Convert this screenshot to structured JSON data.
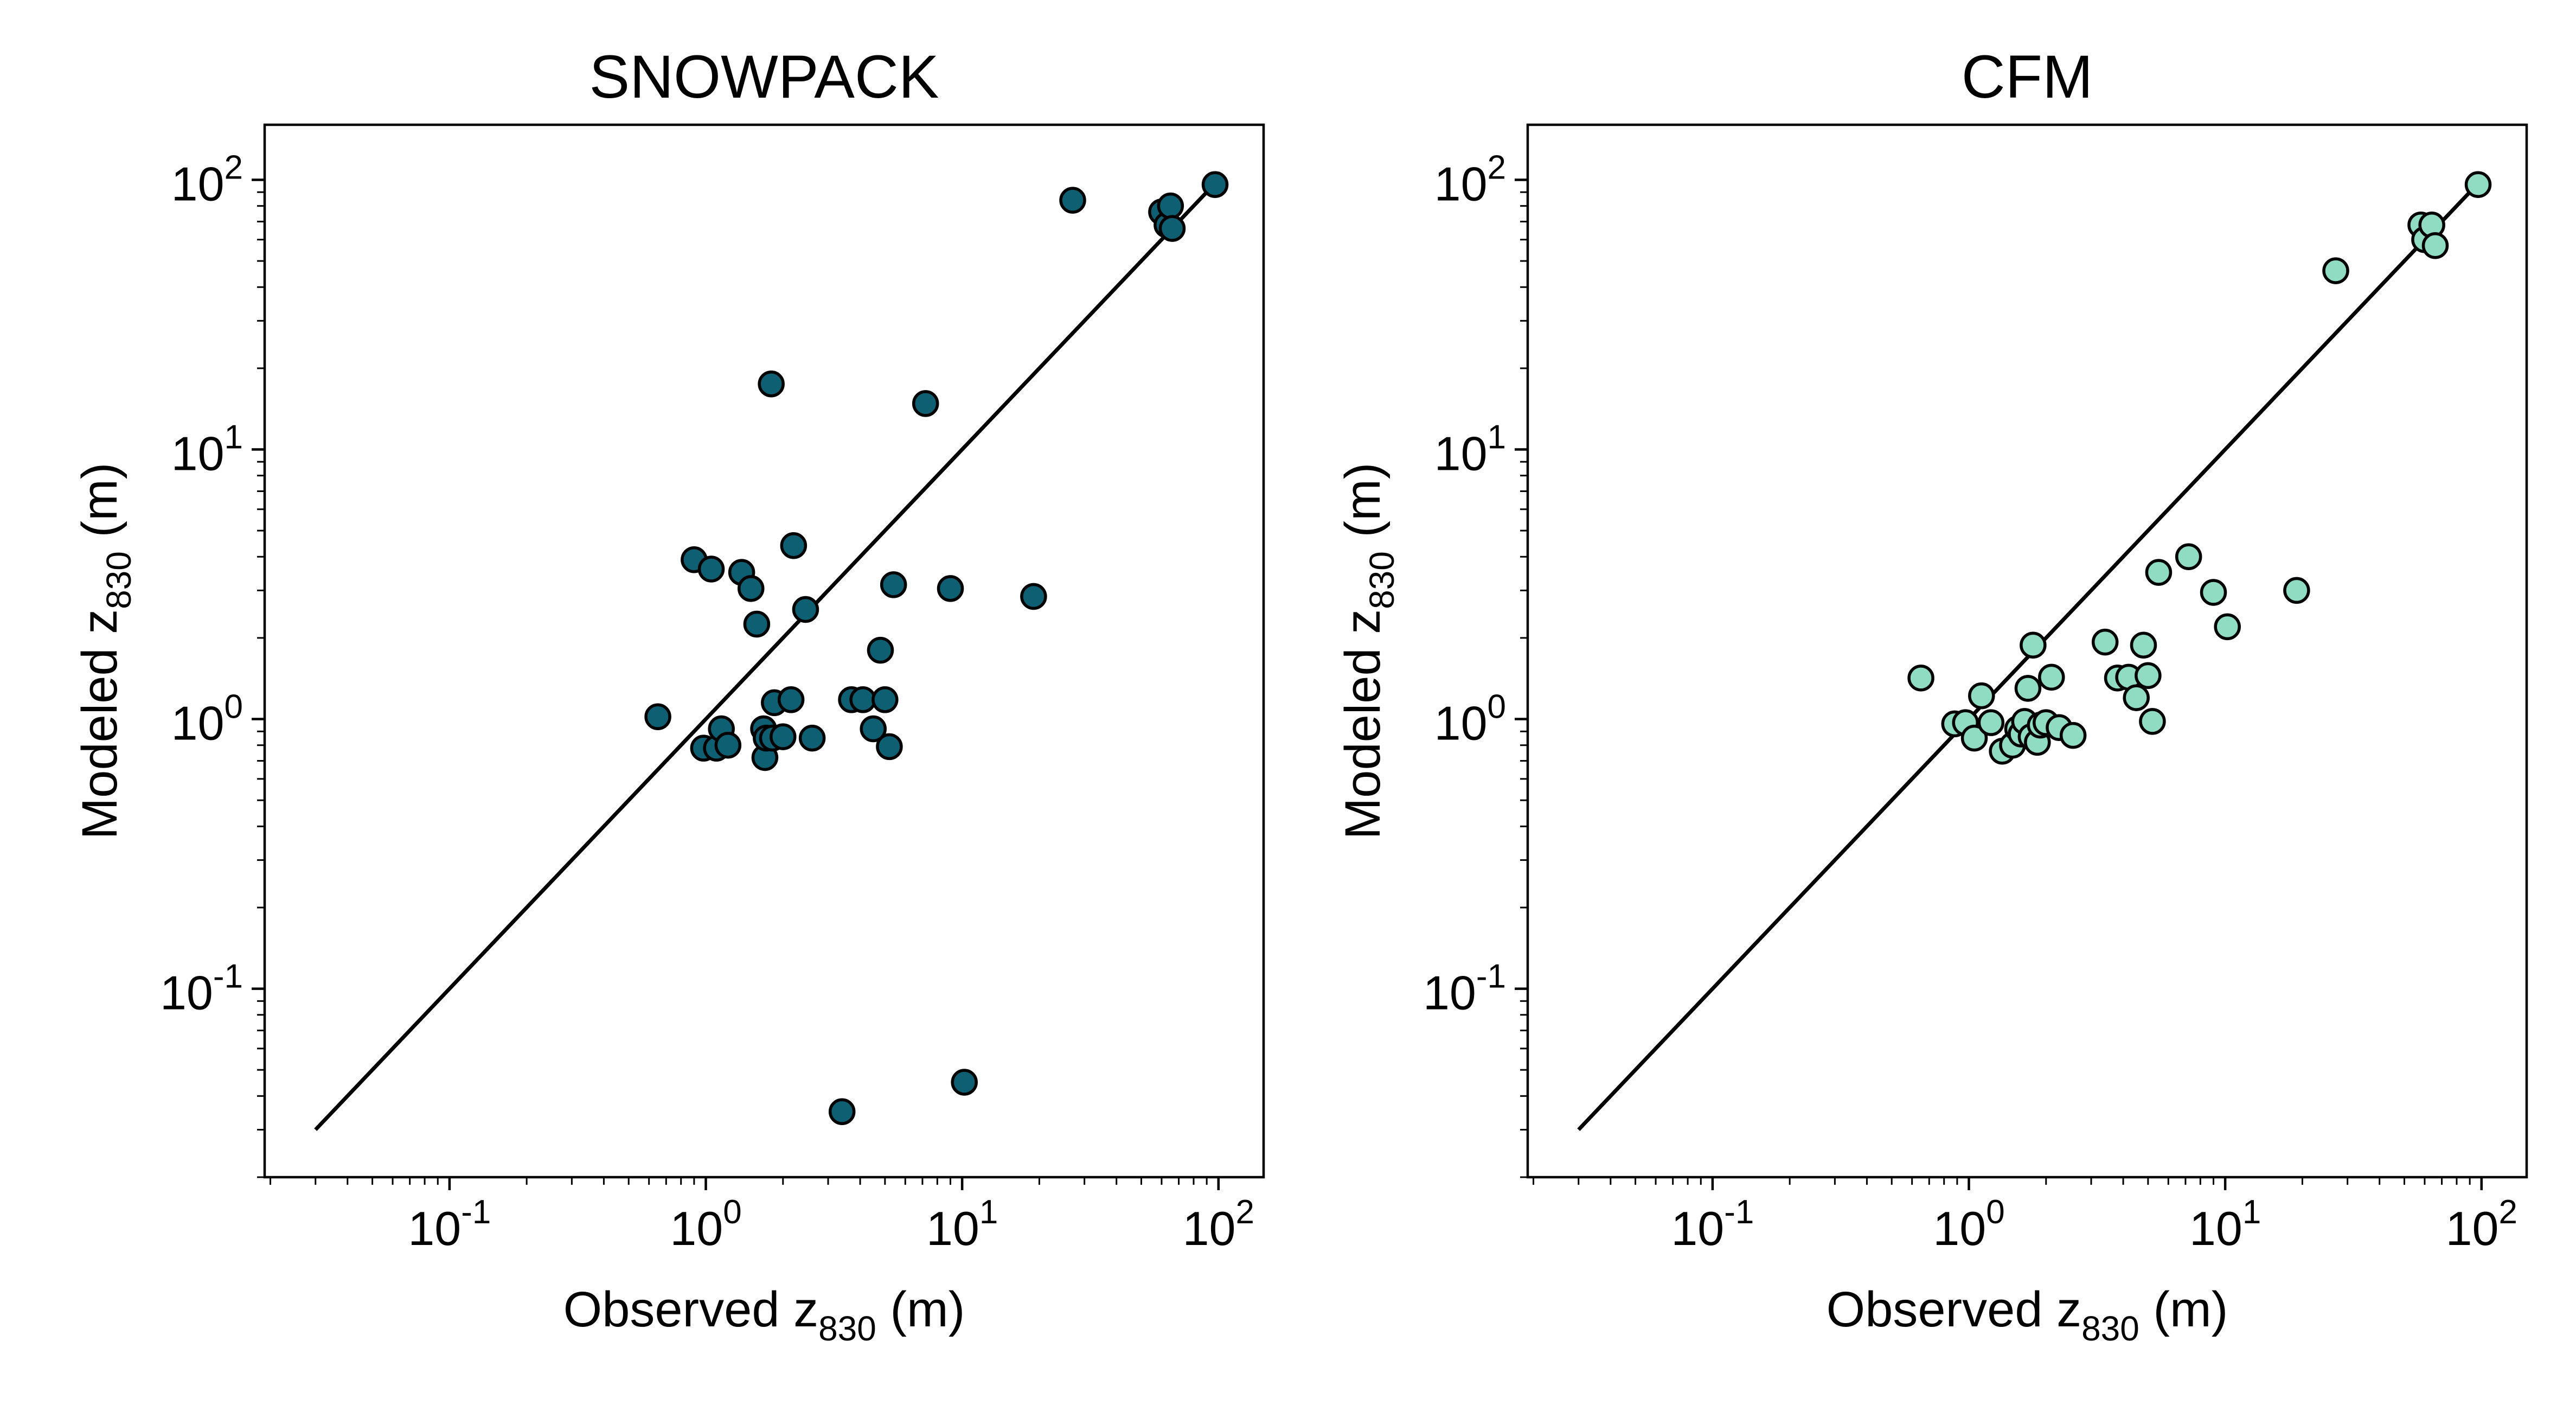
{
  "chart_data": [
    {
      "type": "scatter",
      "title": "SNOWPACK",
      "xlabel": {
        "prefix": "Observed z",
        "sub": "830",
        "suffix": " (m)"
      },
      "ylabel": {
        "prefix": "Modeled z",
        "sub": "830",
        "suffix": " (m)"
      },
      "xscale": "log",
      "yscale": "log",
      "xlim": [
        0.019,
        150
      ],
      "ylim": [
        0.02,
        160
      ],
      "xticks": [
        {
          "base": "10",
          "exp": "-1",
          "value": 0.1
        },
        {
          "base": "10",
          "exp": "0",
          "value": 1
        },
        {
          "base": "10",
          "exp": "1",
          "value": 10
        },
        {
          "base": "10",
          "exp": "2",
          "value": 100
        }
      ],
      "yticks": [
        {
          "base": "10",
          "exp": "-1",
          "value": 0.1
        },
        {
          "base": "10",
          "exp": "0",
          "value": 1
        },
        {
          "base": "10",
          "exp": "1",
          "value": 10
        },
        {
          "base": "10",
          "exp": "2",
          "value": 100
        }
      ],
      "identity_line": {
        "x": [
          0.03,
          97
        ],
        "y": [
          0.03,
          97
        ],
        "color": "#000000"
      },
      "marker_color": "#0f5f73",
      "series": [
        {
          "points": [
            [
              0.65,
              1.02
            ],
            [
              0.9,
              3.9
            ],
            [
              0.98,
              0.78
            ],
            [
              1.05,
              3.6
            ],
            [
              1.1,
              0.78
            ],
            [
              1.15,
              0.92
            ],
            [
              1.22,
              0.8
            ],
            [
              1.38,
              3.5
            ],
            [
              1.5,
              3.05
            ],
            [
              1.58,
              2.25
            ],
            [
              1.68,
              0.92
            ],
            [
              1.7,
              0.72
            ],
            [
              1.72,
              0.85
            ],
            [
              1.8,
              17.5
            ],
            [
              1.85,
              1.15
            ],
            [
              1.82,
              0.85
            ],
            [
              2.0,
              0.86
            ],
            [
              2.15,
              1.18
            ],
            [
              2.2,
              4.4
            ],
            [
              2.45,
              2.55
            ],
            [
              2.6,
              0.85
            ],
            [
              3.4,
              0.035
            ],
            [
              3.7,
              1.18
            ],
            [
              4.1,
              1.18
            ],
            [
              4.5,
              0.92
            ],
            [
              4.8,
              1.8
            ],
            [
              5.0,
              1.18
            ],
            [
              5.2,
              0.79
            ],
            [
              5.4,
              3.15
            ],
            [
              7.2,
              14.8
            ],
            [
              9.0,
              3.05
            ],
            [
              10.2,
              0.045
            ],
            [
              19.0,
              2.85
            ],
            [
              27.0,
              84
            ],
            [
              60,
              76
            ],
            [
              63,
              68
            ],
            [
              65,
              80
            ],
            [
              66,
              66
            ],
            [
              97,
              96
            ]
          ]
        }
      ]
    },
    {
      "type": "scatter",
      "title": "CFM",
      "xlabel": {
        "prefix": "Observed z",
        "sub": "830",
        "suffix": " (m)"
      },
      "ylabel": {
        "prefix": "Modeled z",
        "sub": "830",
        "suffix": " (m)"
      },
      "xscale": "log",
      "yscale": "log",
      "xlim": [
        0.019,
        150
      ],
      "ylim": [
        0.02,
        160
      ],
      "xticks": [
        {
          "base": "10",
          "exp": "-1",
          "value": 0.1
        },
        {
          "base": "10",
          "exp": "0",
          "value": 1
        },
        {
          "base": "10",
          "exp": "1",
          "value": 10
        },
        {
          "base": "10",
          "exp": "2",
          "value": 100
        }
      ],
      "yticks": [
        {
          "base": "10",
          "exp": "-1",
          "value": 0.1
        },
        {
          "base": "10",
          "exp": "0",
          "value": 1
        },
        {
          "base": "10",
          "exp": "1",
          "value": 10
        },
        {
          "base": "10",
          "exp": "2",
          "value": 100
        }
      ],
      "identity_line": {
        "x": [
          0.03,
          97
        ],
        "y": [
          0.03,
          97
        ],
        "color": "#000000"
      },
      "marker_color": "#8fdcc3",
      "series": [
        {
          "points": [
            [
              0.65,
              1.42
            ],
            [
              0.88,
              0.96
            ],
            [
              0.97,
              0.97
            ],
            [
              1.05,
              0.85
            ],
            [
              1.12,
              1.22
            ],
            [
              1.22,
              0.97
            ],
            [
              1.35,
              0.76
            ],
            [
              1.48,
              0.8
            ],
            [
              1.55,
              0.92
            ],
            [
              1.6,
              0.88
            ],
            [
              1.65,
              0.98
            ],
            [
              1.7,
              1.3
            ],
            [
              1.75,
              0.86
            ],
            [
              1.78,
              1.88
            ],
            [
              1.85,
              0.82
            ],
            [
              1.9,
              0.95
            ],
            [
              2.0,
              0.97
            ],
            [
              2.1,
              1.43
            ],
            [
              2.25,
              0.93
            ],
            [
              2.55,
              0.87
            ],
            [
              3.4,
              1.93
            ],
            [
              3.8,
              1.42
            ],
            [
              4.2,
              1.43
            ],
            [
              4.5,
              1.2
            ],
            [
              4.8,
              1.88
            ],
            [
              5.0,
              1.45
            ],
            [
              5.2,
              0.98
            ],
            [
              5.5,
              3.5
            ],
            [
              7.2,
              4.0
            ],
            [
              9.0,
              2.95
            ],
            [
              10.2,
              2.2
            ],
            [
              19.0,
              3.0
            ],
            [
              27.0,
              46
            ],
            [
              58,
              68
            ],
            [
              60,
              60
            ],
            [
              64,
              68
            ],
            [
              66,
              57
            ],
            [
              97,
              96
            ]
          ]
        }
      ]
    }
  ]
}
